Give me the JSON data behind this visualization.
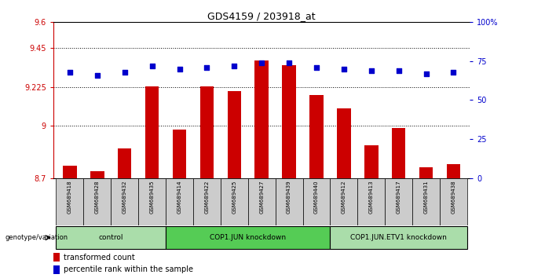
{
  "title": "GDS4159 / 203918_at",
  "samples": [
    "GSM689418",
    "GSM689428",
    "GSM689432",
    "GSM689435",
    "GSM689414",
    "GSM689422",
    "GSM689425",
    "GSM689427",
    "GSM689439",
    "GSM689440",
    "GSM689412",
    "GSM689413",
    "GSM689417",
    "GSM689431",
    "GSM689438"
  ],
  "bar_values": [
    8.77,
    8.74,
    8.87,
    9.23,
    8.98,
    9.23,
    9.2,
    9.38,
    9.35,
    9.18,
    9.1,
    8.89,
    8.99,
    8.76,
    8.78
  ],
  "percentile_values": [
    68,
    66,
    68,
    72,
    70,
    71,
    72,
    74,
    74,
    71,
    70,
    69,
    69,
    67,
    68
  ],
  "groups": [
    {
      "label": "control",
      "start": 0,
      "end": 4,
      "color": "#aaddaa"
    },
    {
      "label": "COP1.JUN knockdown",
      "start": 4,
      "end": 10,
      "color": "#55cc55"
    },
    {
      "label": "COP1.JUN.ETV1 knockdown",
      "start": 10,
      "end": 15,
      "color": "#aaddaa"
    }
  ],
  "bar_color": "#cc0000",
  "percentile_color": "#0000cc",
  "ylim_left": [
    8.7,
    9.6
  ],
  "ylim_right": [
    0,
    100
  ],
  "yticks_left": [
    8.7,
    9.0,
    9.225,
    9.45,
    9.6
  ],
  "ytick_labels_left": [
    "8.7",
    "9",
    "9.225",
    "9.45",
    "9.6"
  ],
  "yticks_right": [
    0,
    25,
    50,
    75,
    100
  ],
  "ytick_labels_right": [
    "0",
    "25",
    "50",
    "75",
    "100%"
  ],
  "grid_values": [
    9.0,
    9.225,
    9.45
  ],
  "legend_bar": "transformed count",
  "legend_pct": "percentile rank within the sample",
  "bar_width": 0.5,
  "sample_bg_color": "#cccccc",
  "fig_bg": "#ffffff"
}
